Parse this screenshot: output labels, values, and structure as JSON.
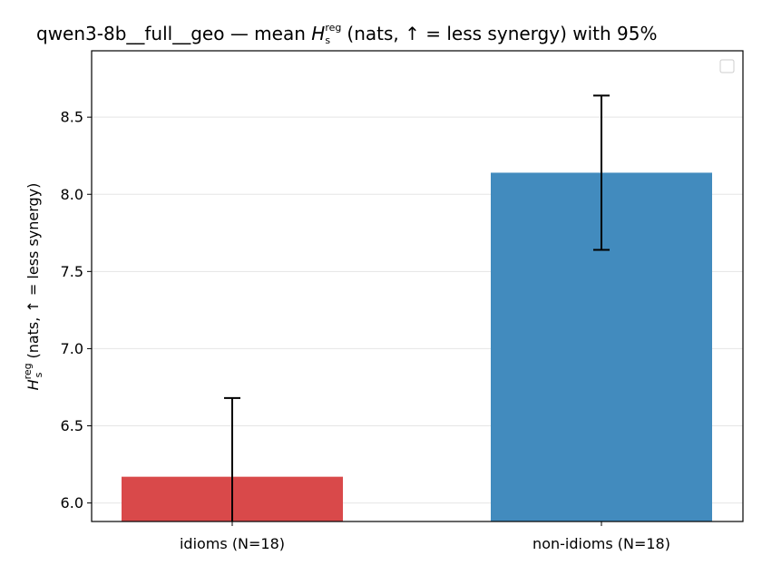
{
  "chart_data": {
    "type": "bar",
    "title": {
      "prefix": "qwen3-8b__full__geo — mean ",
      "var": "H",
      "sup": "reg",
      "sub": "s",
      "suffix": " (nats, ↑ = less synergy) with 95%"
    },
    "ylabel": {
      "var": "H",
      "sup": "reg",
      "sub": "s",
      "suffix": " (nats, ↑ = less synergy)"
    },
    "xlabel": "",
    "categories": [
      "idioms (N=18)",
      "non-idioms (N=18)"
    ],
    "values": [
      6.17,
      8.14
    ],
    "ci_low": [
      5.67,
      7.64
    ],
    "ci_high": [
      6.68,
      8.64
    ],
    "colors": [
      "#d9494a",
      "#428bbe"
    ],
    "ylim": [
      5.88,
      8.93
    ],
    "yticks": [
      6.0,
      6.5,
      7.0,
      7.5,
      8.0,
      8.5
    ],
    "grid": "y",
    "legend": {
      "placement": "top-right",
      "entries": []
    }
  }
}
